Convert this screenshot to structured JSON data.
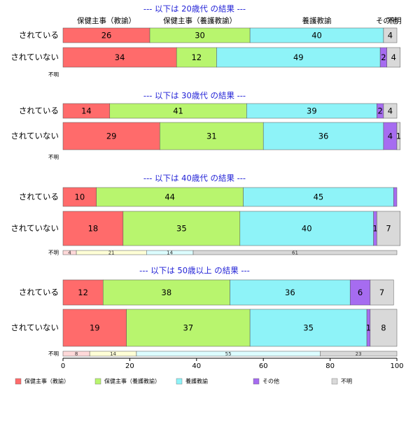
{
  "chart_data": {
    "type": "bar",
    "orientation": "horizontal",
    "stacked": true,
    "xlim": [
      0,
      100
    ],
    "x_ticks": [
      "0",
      "20",
      "40",
      "60",
      "80",
      "100"
    ],
    "row_labels": [
      "されている",
      "されていない",
      "不明"
    ],
    "legend_placement": "bottom",
    "series": [
      {
        "name": "保健主事（教諭）",
        "color": "#ff6b6b"
      },
      {
        "name": "保健主事（養護教諭）",
        "color": "#b8f56e"
      },
      {
        "name": "養護教諭",
        "color": "#8ef3f8"
      },
      {
        "name": "その他",
        "color": "#a66cf0"
      },
      {
        "name": "不明",
        "color": "#d9d9d9"
      }
    ],
    "top_category_labels": [
      "保健主事（教諭）",
      "保健主事（養護教諭）",
      "養護教諭",
      "その他",
      "不明"
    ],
    "panels": [
      {
        "title": "--- 以下は 20歳代 の結果 ---",
        "rows": [
          {
            "label": "されている",
            "values": [
              26,
              30,
              40,
              0,
              4
            ],
            "value_labels": [
              "26",
              "30",
              "40",
              "",
              "4"
            ]
          },
          {
            "label": "されていない",
            "values": [
              34,
              12,
              49,
              2,
              4
            ],
            "value_labels": [
              "34",
              "12",
              "49",
              "2",
              "4"
            ]
          },
          {
            "label": "不明",
            "values": [
              0,
              0,
              0,
              0,
              0
            ],
            "value_labels": [
              "",
              "",
              "",
              "",
              ""
            ]
          }
        ]
      },
      {
        "title": "--- 以下は 30歳代 の結果 ---",
        "rows": [
          {
            "label": "されている",
            "values": [
              14,
              41,
              39,
              2,
              4
            ],
            "value_labels": [
              "14",
              "41",
              "39",
              "2",
              "4"
            ]
          },
          {
            "label": "されていない",
            "values": [
              29,
              31,
              36,
              4,
              1
            ],
            "value_labels": [
              "29",
              "31",
              "36",
              "4",
              "1"
            ]
          },
          {
            "label": "不明",
            "values": [
              0,
              0,
              0,
              0,
              0
            ],
            "value_labels": [
              "",
              "",
              "",
              "",
              ""
            ]
          }
        ]
      },
      {
        "title": "--- 以下は 40歳代 の結果 ---",
        "rows": [
          {
            "label": "されている",
            "values": [
              10,
              44,
              45,
              1,
              0
            ],
            "value_labels": [
              "10",
              "44",
              "45",
              "",
              ""
            ]
          },
          {
            "label": "されていない",
            "values": [
              18,
              35,
              40,
              1,
              7
            ],
            "value_labels": [
              "18",
              "35",
              "40",
              "1",
              "7"
            ]
          },
          {
            "label": "不明",
            "values": [
              4,
              21,
              14,
              0,
              61
            ],
            "value_labels": [
              "4",
              "21",
              "14",
              "",
              "61"
            ]
          }
        ]
      },
      {
        "title": "--- 以下は 50歳以上 の結果 ---",
        "rows": [
          {
            "label": "されている",
            "values": [
              12,
              38,
              36,
              6,
              7
            ],
            "value_labels": [
              "12",
              "38",
              "36",
              "6",
              "7"
            ]
          },
          {
            "label": "されていない",
            "values": [
              19,
              37,
              35,
              1,
              8
            ],
            "value_labels": [
              "19",
              "37",
              "35",
              "1",
              "8"
            ]
          },
          {
            "label": "不明",
            "values": [
              8,
              14,
              55,
              0,
              23
            ],
            "value_labels": [
              "8",
              "14",
              "55",
              "",
              "23"
            ]
          }
        ]
      }
    ]
  }
}
